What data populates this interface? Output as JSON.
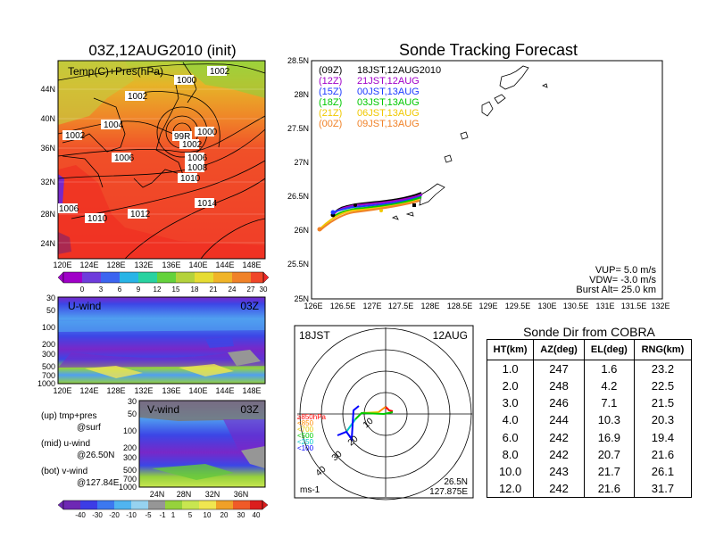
{
  "left_panel": {
    "title": "03Z,12AUG2010 (init)",
    "field_label": "Temp(C)+Pres(hPa)",
    "lon_ticks": [
      "120E",
      "124E",
      "128E",
      "132E",
      "136E",
      "140E",
      "144E",
      "148E"
    ],
    "lat_ticks": [
      "44N",
      "40N",
      "36N",
      "32N",
      "28N",
      "24N"
    ],
    "pressure_labels": [
      "1002",
      "1000",
      "1002",
      "1002",
      "1004",
      "1000",
      "1002",
      "1006",
      "1006",
      "1008",
      "1010",
      "1006",
      "1014",
      "1012",
      "1010",
      "1008",
      "1002"
    ],
    "typhoon_label": "99R",
    "colorbar_labels": [
      "0",
      "3",
      "6",
      "9",
      "12",
      "15",
      "18",
      "21",
      "24",
      "27",
      "30"
    ]
  },
  "u_panel": {
    "label": "U-wind",
    "time": "03Z",
    "pressure_ticks": [
      "30",
      "50",
      "100",
      "200",
      "300",
      "500",
      "700",
      "1000"
    ],
    "lon_ticks": [
      "120E",
      "124E",
      "128E",
      "132E",
      "136E",
      "140E",
      "144E",
      "148E"
    ]
  },
  "v_panel": {
    "label": "V-wind",
    "time": "03Z",
    "pressure_ticks": [
      "30",
      "50",
      "100",
      "200",
      "300",
      "500",
      "700",
      "1000"
    ],
    "lat_ticks": [
      "24N",
      "28N",
      "32N",
      "36N"
    ]
  },
  "legend_notes": {
    "up": "(up) tmp+pres",
    "up_sub": "@surf",
    "mid": "(mid) u-wind",
    "mid_sub": "@26.50N",
    "bot": "(bot) v-wind",
    "bot_sub": "@127.84E"
  },
  "wind_colorbar_labels": [
    "-40",
    "-30",
    "-20",
    "-10",
    "-5",
    "-1",
    "1",
    "5",
    "10",
    "20",
    "30",
    "40"
  ],
  "track": {
    "title": "Sonde Tracking Forecast",
    "lat_ticks": [
      "28.5N",
      "28N",
      "27.5N",
      "27N",
      "26.5N",
      "26N",
      "25.5N",
      "25N"
    ],
    "lon_ticks": [
      "126E",
      "126.5E",
      "127E",
      "127.5E",
      "128E",
      "128.5E",
      "129E",
      "129.5E",
      "130E",
      "130.5E",
      "131E",
      "131.5E",
      "132E"
    ],
    "legend": [
      {
        "utc": "(09Z)",
        "jst": "18JST,12AUG2010",
        "color": "#000000"
      },
      {
        "utc": "(12Z)",
        "jst": "21JST,12AUG",
        "color": "#a000c8"
      },
      {
        "utc": "(15Z)",
        "jst": "00JST,13AUG",
        "color": "#1e3cff"
      },
      {
        "utc": "(18Z)",
        "jst": "03JST,13AUG",
        "color": "#00c800"
      },
      {
        "utc": "(21Z)",
        "jst": "06JST,13AUG",
        "color": "#f0c800"
      },
      {
        "utc": "(00Z)",
        "jst": "09JST,13AUG",
        "color": "#f08228"
      }
    ],
    "info_vup": "VUP= 5.0 m/s",
    "info_vdw": "VDW= -3.0 m/s",
    "info_burst": "Burst Alt= 25.0 km"
  },
  "polar": {
    "time_label": "18JST",
    "date_label": "12AUG",
    "legend": [
      {
        "text": "≥850hPa",
        "color": "#ff0000"
      },
      {
        "text": "<850",
        "color": "#ff8c00"
      },
      {
        "text": "<700",
        "color": "#e6c800"
      },
      {
        "text": "<500",
        "color": "#00c800"
      },
      {
        "text": "<250",
        "color": "#00c8c8"
      },
      {
        "text": "<100",
        "color": "#0000ff"
      }
    ],
    "ring_labels": [
      "10",
      "20",
      "30",
      "40"
    ],
    "units": "ms-1",
    "pos_lat": "26.5N",
    "pos_lon": "127.875E"
  },
  "cobra": {
    "title": "Sonde Dir from COBRA",
    "headers": [
      "HT(km)",
      "AZ(deg)",
      "EL(deg)",
      "RNG(km)"
    ],
    "rows": [
      [
        "1.0",
        "247",
        "1.6",
        "23.2"
      ],
      [
        "2.0",
        "248",
        "4.2",
        "22.5"
      ],
      [
        "3.0",
        "246",
        "7.1",
        "21.5"
      ],
      [
        "4.0",
        "244",
        "10.3",
        "20.3"
      ],
      [
        "6.0",
        "242",
        "16.9",
        "19.4"
      ],
      [
        "8.0",
        "242",
        "20.7",
        "21.6"
      ],
      [
        "10.0",
        "243",
        "21.7",
        "26.1"
      ],
      [
        "12.0",
        "242",
        "21.6",
        "31.7"
      ]
    ]
  }
}
